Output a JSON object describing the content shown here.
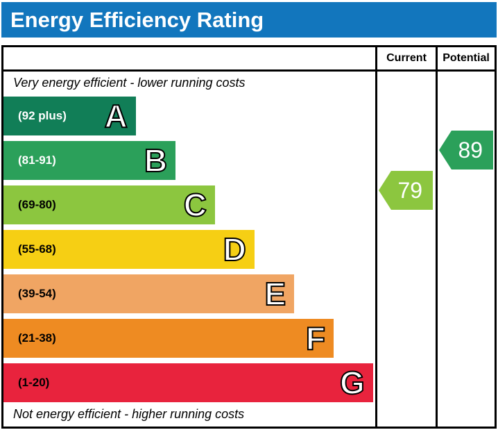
{
  "title": "Energy Efficiency Rating",
  "columns": {
    "current": "Current",
    "potential": "Potential"
  },
  "notes": {
    "top": "Very energy efficient - lower running costs",
    "bottom": "Not energy efficient - higher running costs"
  },
  "colors": {
    "title_bg": "#1276bd",
    "title_text": "#ffffff",
    "border": "#000000"
  },
  "chart_data": {
    "type": "epc_energy_rating_bands",
    "title": "Energy Efficiency Rating",
    "bands": [
      {
        "letter": "A",
        "range_label": "(92 plus)",
        "min": 92,
        "max": 100,
        "color": "#117e57",
        "label_color": "#ffffff",
        "width_pct": 35.6
      },
      {
        "letter": "B",
        "range_label": "(81-91)",
        "min": 81,
        "max": 91,
        "color": "#2ba05a",
        "label_color": "#ffffff",
        "width_pct": 46.3
      },
      {
        "letter": "C",
        "range_label": "(69-80)",
        "min": 69,
        "max": 80,
        "color": "#8cc63f",
        "label_color": "#000000",
        "width_pct": 56.9
      },
      {
        "letter": "D",
        "range_label": "(55-68)",
        "min": 55,
        "max": 68,
        "color": "#f6cf14",
        "label_color": "#000000",
        "width_pct": 67.5
      },
      {
        "letter": "E",
        "range_label": "(39-54)",
        "min": 39,
        "max": 54,
        "color": "#f0a563",
        "label_color": "#000000",
        "width_pct": 78.2
      },
      {
        "letter": "F",
        "range_label": "(21-38)",
        "min": 21,
        "max": 38,
        "color": "#ee8b22",
        "label_color": "#000000",
        "width_pct": 88.8
      },
      {
        "letter": "G",
        "range_label": "(1-20)",
        "min": 1,
        "max": 20,
        "color": "#e8233d",
        "label_color": "#000000",
        "width_pct": 99.4
      }
    ],
    "current": {
      "value": 79,
      "band": "C",
      "color": "#8cc63f"
    },
    "potential": {
      "value": 89,
      "band": "B",
      "color": "#2ba05a"
    }
  }
}
